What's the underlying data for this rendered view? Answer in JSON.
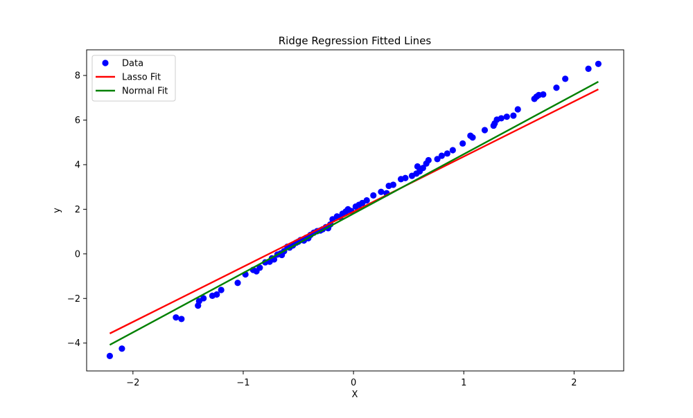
{
  "chart_data": {
    "type": "scatter",
    "title": "Ridge Regression Fitted Lines",
    "xlabel": "X",
    "ylabel": "y",
    "xlim": [
      -2.42,
      2.45
    ],
    "ylim": [
      -5.25,
      9.15
    ],
    "grid": false,
    "legend_placement": "top-left",
    "x_ticks": [
      -2,
      -1,
      0,
      1,
      2
    ],
    "y_ticks": [
      -4,
      -2,
      0,
      2,
      4,
      6,
      8
    ],
    "x_tick_labels": [
      "−2",
      "−1",
      "0",
      "1",
      "2"
    ],
    "y_tick_labels": [
      "−4",
      "−2",
      "0",
      "2",
      "4",
      "6",
      "8"
    ],
    "series": [
      {
        "name": "Data",
        "kind": "scatter",
        "color": "#0000ff",
        "points": [
          [
            -2.21,
            -4.58
          ],
          [
            -2.1,
            -4.25
          ],
          [
            -1.61,
            -2.85
          ],
          [
            -1.56,
            -2.92
          ],
          [
            -1.41,
            -2.32
          ],
          [
            -1.4,
            -2.12
          ],
          [
            -1.36,
            -1.99
          ],
          [
            -1.28,
            -1.88
          ],
          [
            -1.24,
            -1.82
          ],
          [
            -1.2,
            -1.62
          ],
          [
            -1.05,
            -1.3
          ],
          [
            -0.98,
            -0.92
          ],
          [
            -0.91,
            -0.72
          ],
          [
            -0.88,
            -0.78
          ],
          [
            -0.85,
            -0.62
          ],
          [
            -0.8,
            -0.38
          ],
          [
            -0.76,
            -0.35
          ],
          [
            -0.74,
            -0.2
          ],
          [
            -0.72,
            -0.25
          ],
          [
            -0.69,
            -0.03
          ],
          [
            -0.66,
            0.02
          ],
          [
            -0.65,
            -0.05
          ],
          [
            -0.63,
            0.12
          ],
          [
            -0.6,
            0.32
          ],
          [
            -0.58,
            0.28
          ],
          [
            -0.55,
            0.38
          ],
          [
            -0.52,
            0.5
          ],
          [
            -0.5,
            0.55
          ],
          [
            -0.48,
            0.62
          ],
          [
            -0.45,
            0.6
          ],
          [
            -0.43,
            0.72
          ],
          [
            -0.41,
            0.7
          ],
          [
            -0.39,
            0.85
          ],
          [
            -0.36,
            0.95
          ],
          [
            -0.33,
            1.02
          ],
          [
            -0.3,
            1.05
          ],
          [
            -0.28,
            1.1
          ],
          [
            -0.25,
            1.2
          ],
          [
            -0.23,
            1.15
          ],
          [
            -0.21,
            1.32
          ],
          [
            -0.19,
            1.55
          ],
          [
            -0.15,
            1.68
          ],
          [
            -0.12,
            1.65
          ],
          [
            -0.1,
            1.8
          ],
          [
            -0.07,
            1.9
          ],
          [
            -0.05,
            2.0
          ],
          [
            -0.02,
            1.92
          ],
          [
            0.02,
            2.12
          ],
          [
            0.05,
            2.2
          ],
          [
            0.08,
            2.28
          ],
          [
            0.12,
            2.4
          ],
          [
            0.18,
            2.62
          ],
          [
            0.25,
            2.78
          ],
          [
            0.3,
            2.72
          ],
          [
            0.32,
            3.05
          ],
          [
            0.36,
            3.1
          ],
          [
            0.43,
            3.35
          ],
          [
            0.47,
            3.4
          ],
          [
            0.53,
            3.5
          ],
          [
            0.57,
            3.6
          ],
          [
            0.58,
            3.92
          ],
          [
            0.6,
            3.7
          ],
          [
            0.63,
            3.85
          ],
          [
            0.66,
            4.05
          ],
          [
            0.68,
            4.2
          ],
          [
            0.76,
            4.25
          ],
          [
            0.8,
            4.4
          ],
          [
            0.85,
            4.5
          ],
          [
            0.9,
            4.65
          ],
          [
            0.99,
            4.95
          ],
          [
            1.06,
            5.3
          ],
          [
            1.08,
            5.22
          ],
          [
            1.19,
            5.55
          ],
          [
            1.27,
            5.75
          ],
          [
            1.28,
            5.85
          ],
          [
            1.3,
            6.02
          ],
          [
            1.34,
            6.08
          ],
          [
            1.39,
            6.15
          ],
          [
            1.45,
            6.2
          ],
          [
            1.49,
            6.48
          ],
          [
            1.64,
            6.95
          ],
          [
            1.66,
            7.05
          ],
          [
            1.68,
            7.12
          ],
          [
            1.72,
            7.15
          ],
          [
            1.84,
            7.45
          ],
          [
            1.92,
            7.85
          ],
          [
            2.13,
            8.3
          ],
          [
            2.22,
            8.52
          ]
        ]
      },
      {
        "name": "Lasso Fit",
        "kind": "line",
        "color": "#ff0000",
        "points": [
          [
            -2.21,
            -3.57
          ],
          [
            2.22,
            7.38
          ]
        ]
      },
      {
        "name": "Normal Fit",
        "kind": "line",
        "color": "#008000",
        "points": [
          [
            -2.21,
            -4.08
          ],
          [
            2.22,
            7.72
          ]
        ]
      }
    ]
  }
}
